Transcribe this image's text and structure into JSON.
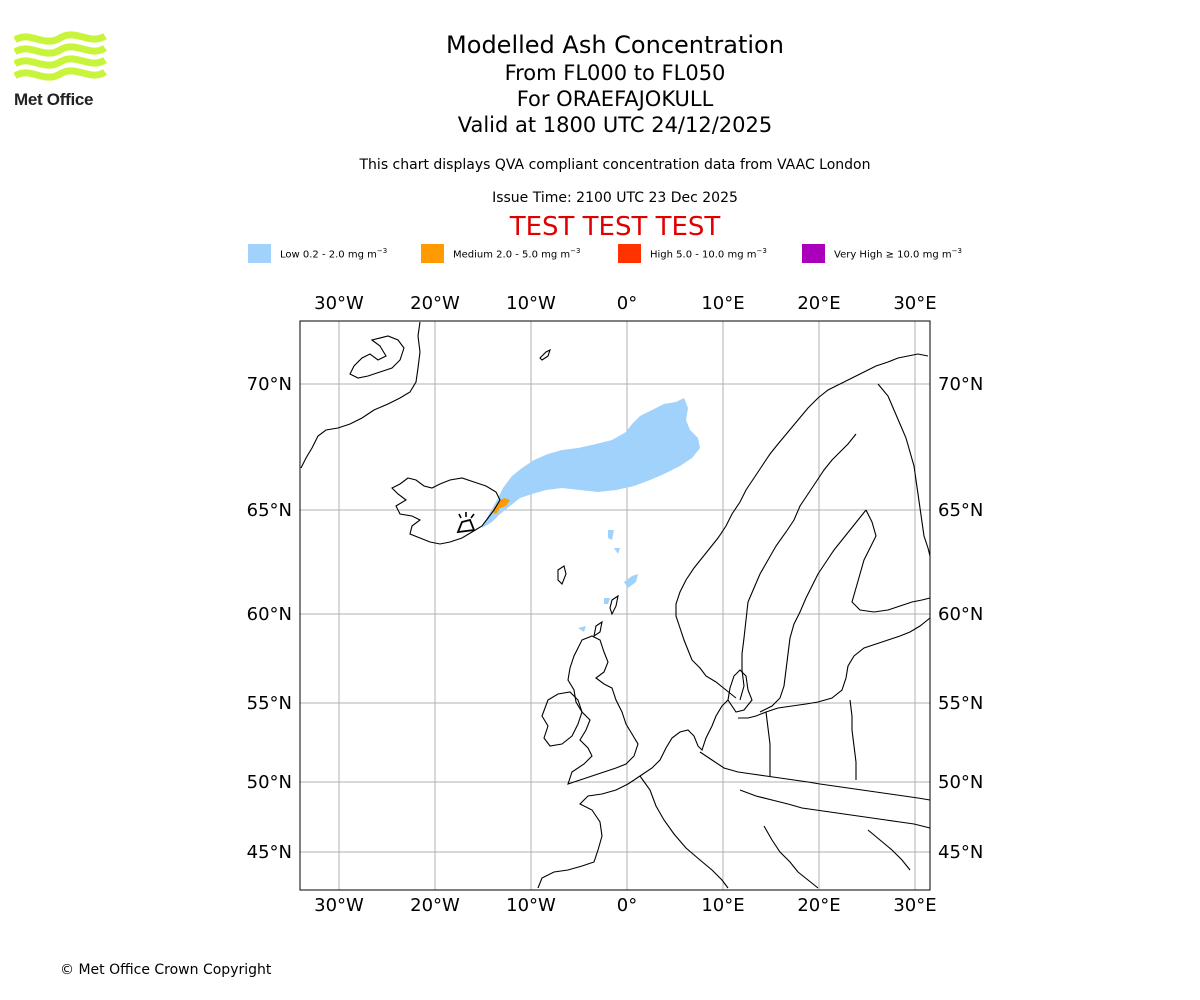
{
  "logo": {
    "brand": "Met Office",
    "color": "#c8f53c"
  },
  "header": {
    "title": "Modelled Ash Concentration",
    "levels": "From FL000 to FL050",
    "volcano": "For ORAEFAJOKULL",
    "valid": "Valid at 1800 UTC 24/12/2025",
    "notice": "This chart displays QVA compliant concentration data from VAAC London",
    "issue": "Issue Time: 2100 UTC 23 Dec 2025",
    "banner": "TEST TEST TEST",
    "banner_color": "#e00000"
  },
  "legend": [
    {
      "label": "Low 0.2 - 2.0 mg m",
      "unit_exp": "−3",
      "color": "#a0d2fc"
    },
    {
      "label": "Medium 2.0 - 5.0 mg m",
      "unit_exp": "−3",
      "color": "#ff9a00"
    },
    {
      "label": "High 5.0 - 10.0 mg m",
      "unit_exp": "−3",
      "color": "#ff3300"
    },
    {
      "label": "Very High  ≥  10.0 mg m",
      "unit_exp": "−3",
      "color": "#aa00bb"
    }
  ],
  "map": {
    "lon_ticks": [
      "30°W",
      "20°W",
      "10°W",
      "0°",
      "10°E",
      "20°E",
      "30°E"
    ],
    "lat_ticks": [
      "70°N",
      "65°N",
      "60°N",
      "55°N",
      "50°N",
      "45°N"
    ],
    "lon_values": [
      -30,
      -20,
      -10,
      0,
      10,
      20,
      30
    ],
    "lat_values": [
      70,
      65,
      60,
      55,
      50,
      45
    ],
    "extent": {
      "lon_min": -34,
      "lon_max": 32,
      "lat_min": 43,
      "lat_max": 72.5
    },
    "gridline_color": "#b0b0b0",
    "volcano_marker": {
      "name": "volcano-symbol",
      "lon": -16.65,
      "lat": 64.0
    },
    "ash_areas": [
      {
        "level": "low",
        "color": "#a0d2fc"
      },
      {
        "level": "medium",
        "color": "#ff9a00"
      }
    ]
  },
  "footer": {
    "copyright": "© Met Office Crown Copyright"
  }
}
